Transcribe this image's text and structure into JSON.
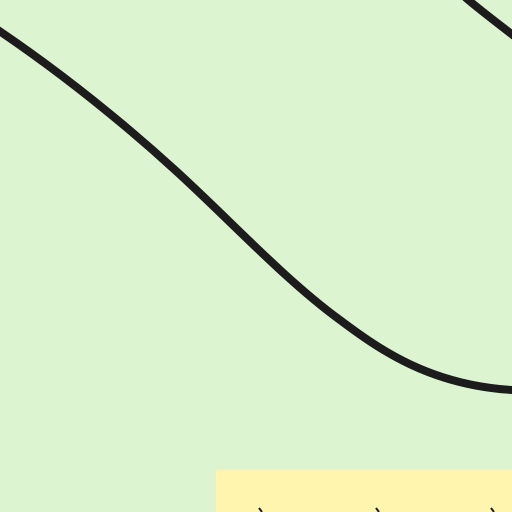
{
  "map": {
    "background_color": "#ddf4d1",
    "road_color": "#1c1c1c",
    "area_color": "#fff5ae",
    "area_edge_color": "#ffe6a0",
    "features": [
      {
        "kind": "road",
        "name": "main-curved-road"
      },
      {
        "kind": "road",
        "name": "top-right-road-segment"
      },
      {
        "kind": "area",
        "name": "yellow-parcel"
      }
    ]
  }
}
